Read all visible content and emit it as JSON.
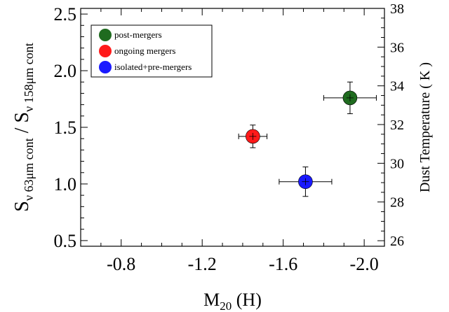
{
  "chart_data": {
    "type": "scatter",
    "xlabel": {
      "main": "M",
      "sub": "20",
      "suffix": " (H)"
    },
    "ylabel": {
      "main": "S",
      "sub1": "ν 63μm cont",
      "sep": " / S",
      "sub2": "ν 158μm cont"
    },
    "y2label": "Dust Temperature ( K )",
    "xlim": [
      -0.6,
      -2.1
    ],
    "ylim": [
      0.45,
      2.55
    ],
    "y2lim": [
      25.714,
      38.0
    ],
    "x_ticks": [
      -0.8,
      -1.2,
      -1.6,
      -2.0
    ],
    "x_tick_labels": [
      "-0.8",
      "-1.2",
      "-1.6",
      "-2.0"
    ],
    "y_ticks": [
      0.5,
      1.0,
      1.5,
      2.0,
      2.5
    ],
    "y_tick_labels": [
      "0.5",
      "1.0",
      "1.5",
      "2.0",
      "2.5"
    ],
    "y2_ticks": [
      26,
      28,
      30,
      32,
      34,
      36,
      38
    ],
    "y2_tick_labels": [
      "26",
      "28",
      "30",
      "32",
      "34",
      "36",
      "38"
    ],
    "legend_position": "top-left",
    "series": [
      {
        "name": "post-mergers",
        "color": "#1f6b1f",
        "points": [
          {
            "x": -1.93,
            "y": 1.76,
            "xerr": 0.13,
            "yerr": 0.14
          }
        ]
      },
      {
        "name": "ongoing mergers",
        "color": "#ff1a1a",
        "points": [
          {
            "x": -1.45,
            "y": 1.42,
            "xerr": 0.07,
            "yerr": 0.1
          }
        ]
      },
      {
        "name": "isolated+pre-mergers",
        "color": "#1a1aff",
        "points": [
          {
            "x": -1.71,
            "y": 1.02,
            "xerr": 0.13,
            "yerr": 0.13
          }
        ]
      }
    ]
  }
}
